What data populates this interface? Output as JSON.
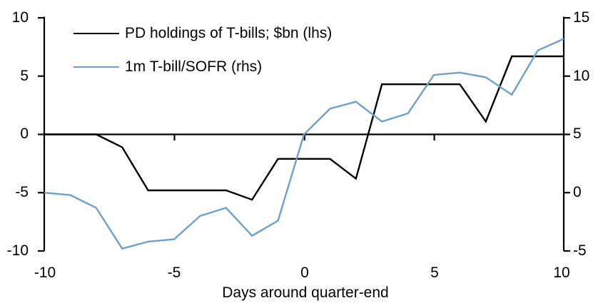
{
  "chart_data": {
    "type": "line",
    "title": "",
    "xlabel": "Days around quarter-end",
    "ylabel_left": "",
    "ylabel_right": "",
    "grid": false,
    "legend_position": "top-left",
    "xlim": [
      -10,
      10
    ],
    "x_ticks": [
      "-10",
      "-5",
      "0",
      "5",
      "10"
    ],
    "y_left": {
      "max": 10,
      "min": -10,
      "ticks": [
        "10",
        "5",
        "0",
        "-5",
        "-10"
      ]
    },
    "y_right": {
      "max": 15,
      "min": -5,
      "ticks": [
        "15",
        "10",
        "5",
        "0",
        "-5"
      ]
    },
    "x": [
      -10,
      -9,
      -8,
      -7,
      -6,
      -5,
      -4,
      -3,
      -2,
      -1,
      0,
      1,
      2,
      3,
      4,
      5,
      6,
      7,
      8,
      9,
      10
    ],
    "series": [
      {
        "name": "PD holdings of T-bills; $bn (lhs)",
        "axis": "left",
        "color": "#000000",
        "values": [
          0,
          0,
          0,
          -1.1,
          -4.8,
          -4.8,
          -4.8,
          -4.8,
          -5.6,
          -2.1,
          -2.1,
          -2.1,
          -3.8,
          4.3,
          4.3,
          4.3,
          4.3,
          1.1,
          6.7,
          6.7,
          6.7
        ]
      },
      {
        "name": "1m T-bill/SOFR (rhs)",
        "axis": "right",
        "color": "#6C9FD4",
        "values": [
          0.0,
          -0.2,
          -1.3,
          -4.8,
          -4.2,
          -4.0,
          -2.0,
          -1.3,
          -3.7,
          -2.4,
          5.0,
          7.2,
          7.8,
          6.1,
          6.8,
          10.1,
          10.3,
          9.9,
          8.4,
          12.2,
          13.2
        ]
      }
    ]
  }
}
